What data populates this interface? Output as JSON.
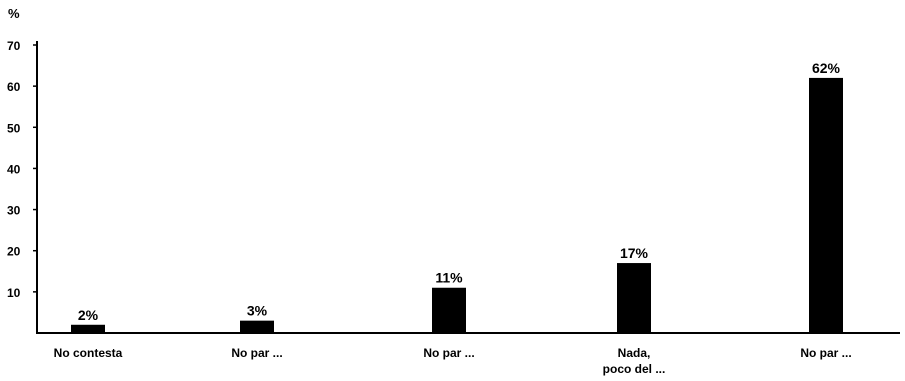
{
  "chart_data": {
    "type": "bar",
    "ylabel": "%",
    "ylim": [
      0,
      70
    ],
    "yticks": [
      10,
      20,
      30,
      40,
      50,
      60,
      70
    ],
    "grid": false,
    "legend": "none",
    "categories": [
      "No contesta",
      "No par ...",
      "No par ...",
      "Nada, poco del ...",
      "No par ..."
    ],
    "values": [
      2,
      3,
      11,
      17,
      62
    ],
    "data_labels": [
      "2%",
      "3%",
      "11%",
      "17%",
      "62%"
    ],
    "bar_color": "#000000"
  }
}
